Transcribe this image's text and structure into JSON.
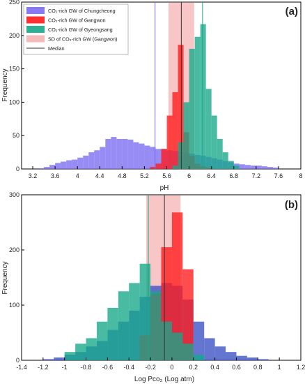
{
  "colors": {
    "chungcheong": "#7a6cf0",
    "gangwon": "#ff1a1a",
    "gyeongsang": "#16a889",
    "sd_band": "#f6b3b3",
    "median_line": "#333333",
    "blue_panel_b": "#3a4fc4"
  },
  "chart_data": [
    {
      "type": "bar",
      "panel_label": "(a)",
      "xlabel": "pH",
      "ylabel": "Frequency",
      "xlim": [
        3.0,
        8.0
      ],
      "ylim": [
        0,
        250
      ],
      "xticks": [
        "3.2",
        "3.6",
        "4",
        "4.4",
        "4.8",
        "5.2",
        "5.6",
        "6",
        "6.4",
        "6.8",
        "7.2",
        "7.6",
        "8"
      ],
      "xtick_values": [
        3.2,
        3.6,
        4.0,
        4.4,
        4.8,
        5.2,
        5.6,
        6.0,
        6.4,
        6.8,
        7.2,
        7.6,
        8.0
      ],
      "yticks": [
        "0",
        "50",
        "100",
        "150",
        "200",
        "250"
      ],
      "ytick_values": [
        0,
        50,
        100,
        150,
        200,
        250
      ],
      "bin_width": 0.1,
      "legend": {
        "placement": "top-left",
        "entries": [
          {
            "label": "CO₂-rich GW of Chungcheong",
            "swatch": "chungcheong"
          },
          {
            "label": "CO₂-rich GW of Gangwon",
            "swatch": "gangwon"
          },
          {
            "label": "CO₂-rich GW of Gyeongsang",
            "swatch": "gyeongsang"
          },
          {
            "label": "SD of CO₂-rich GW (Gangwon)",
            "swatch": "sd"
          },
          {
            "label": "Median",
            "swatch": "line"
          }
        ]
      },
      "series": [
        {
          "name": "CO₂-rich GW of Chungcheong",
          "color_key": "chungcheong",
          "bin_starts": [
            3.3,
            3.4,
            3.5,
            3.6,
            3.7,
            3.8,
            3.9,
            4.0,
            4.1,
            4.2,
            4.3,
            4.4,
            4.5,
            4.6,
            4.7,
            4.8,
            4.9,
            5.0,
            5.1,
            5.2,
            5.3,
            5.4,
            5.5,
            5.6,
            5.7,
            5.8,
            5.9,
            6.0,
            6.1,
            6.2,
            6.3,
            6.4,
            6.5,
            6.6,
            6.7,
            6.8,
            6.9,
            7.0,
            7.1,
            7.2,
            7.3,
            7.4,
            7.5
          ],
          "values": [
            1,
            3,
            6,
            9,
            11,
            13,
            14,
            17,
            20,
            25,
            28,
            33,
            45,
            48,
            45,
            45,
            44,
            40,
            38,
            35,
            33,
            30,
            30,
            28,
            27,
            26,
            25,
            23,
            21,
            20,
            18,
            16,
            14,
            12,
            10,
            8,
            7,
            6,
            5,
            5,
            4,
            3,
            2
          ]
        },
        {
          "name": "CO₂-rich GW of Gangwon",
          "color_key": "gangwon",
          "bin_starts": [
            5.3,
            5.4,
            5.5,
            5.6,
            5.7,
            5.8,
            5.9,
            6.0,
            6.1,
            6.2,
            6.3
          ],
          "values": [
            3,
            8,
            30,
            80,
            115,
            186,
            55,
            20,
            8,
            4,
            2
          ]
        },
        {
          "name": "CO₂-rich GW of Gyeongsang",
          "color_key": "gyeongsang",
          "bin_starts": [
            5.7,
            5.8,
            5.9,
            6.0,
            6.1,
            6.2,
            6.3,
            6.4,
            6.5,
            6.6,
            6.7,
            6.8
          ],
          "values": [
            5,
            40,
            100,
            180,
            198,
            217,
            120,
            80,
            45,
            25,
            12,
            5
          ]
        }
      ],
      "median_lines": [
        {
          "series": "CO₂-rich GW of Chungcheong",
          "x": 5.39,
          "color_key": "chungcheong"
        },
        {
          "series": "CO₂-rich GW of Gangwon",
          "x": 5.86,
          "color_key": "median_line"
        },
        {
          "series": "CO₂-rich GW of Gyeongsang",
          "x": 6.24,
          "color_key": "gyeongsang"
        }
      ],
      "sd_band": {
        "series": "CO₂-rich GW (Gangwon)",
        "from": 5.63,
        "to": 6.09
      }
    },
    {
      "type": "bar",
      "panel_label": "(b)",
      "xlabel": "Log Pco₂ (Log atm)",
      "ylabel": "Frequency",
      "xlim": [
        -1.4,
        1.2
      ],
      "ylim": [
        0,
        300
      ],
      "xticks": [
        "-1.4",
        "-1.2",
        "-1",
        "-0.8",
        "-0.6",
        "-0.4",
        "-0.2",
        "0",
        "0.2",
        "0.4",
        "0.6",
        "0.8",
        "1",
        "1.2"
      ],
      "xtick_values": [
        -1.4,
        -1.2,
        -1.0,
        -0.8,
        -0.6,
        -0.4,
        -0.2,
        0.0,
        0.2,
        0.4,
        0.6,
        0.8,
        1.0,
        1.2
      ],
      "yticks": [
        "0",
        "100",
        "200",
        "300"
      ],
      "ytick_values": [
        0,
        100,
        200,
        300
      ],
      "bin_width": 0.1,
      "series": [
        {
          "name": "CO₂-rich GW of Chungcheong",
          "color_key": "blue_panel_b",
          "bin_starts": [
            -1.2,
            -1.1,
            -1.0,
            -0.9,
            -0.8,
            -0.7,
            -0.6,
            -0.5,
            -0.4,
            -0.3,
            -0.2,
            -0.1,
            0.0,
            0.1,
            0.2,
            0.3,
            0.4,
            0.5,
            0.6,
            0.7,
            0.8
          ],
          "values": [
            2,
            5,
            10,
            15,
            25,
            35,
            55,
            70,
            90,
            115,
            135,
            140,
            135,
            110,
            70,
            40,
            25,
            15,
            8,
            5,
            2
          ]
        },
        {
          "name": "CO₂-rich GW of Gangwon",
          "color_key": "gangwon",
          "bin_starts": [
            -0.3,
            -0.2,
            -0.1,
            0.0,
            0.1
          ],
          "values": [
            45,
            120,
            205,
            268,
            165
          ]
        },
        {
          "name": "CO₂-rich GW of Gyeongsang",
          "color_key": "gyeongsang",
          "bin_starts": [
            -1.0,
            -0.9,
            -0.8,
            -0.7,
            -0.6,
            -0.5,
            -0.4,
            -0.3,
            -0.2,
            -0.1,
            0.0,
            0.1,
            0.2
          ],
          "values": [
            15,
            30,
            40,
            70,
            95,
            125,
            140,
            175,
            125,
            70,
            50,
            30,
            10
          ]
        }
      ],
      "median_lines": [
        {
          "series": "CO₂-rich GW of Gyeongsang",
          "x": -0.22,
          "color_key": "gyeongsang"
        },
        {
          "series": "CO₂-rich GW of Gangwon",
          "x": -0.07,
          "color_key": "median_line"
        }
      ],
      "sd_band": {
        "series": "CO₂-rich GW (Gangwon)",
        "from": -0.24,
        "to": 0.08
      }
    }
  ]
}
